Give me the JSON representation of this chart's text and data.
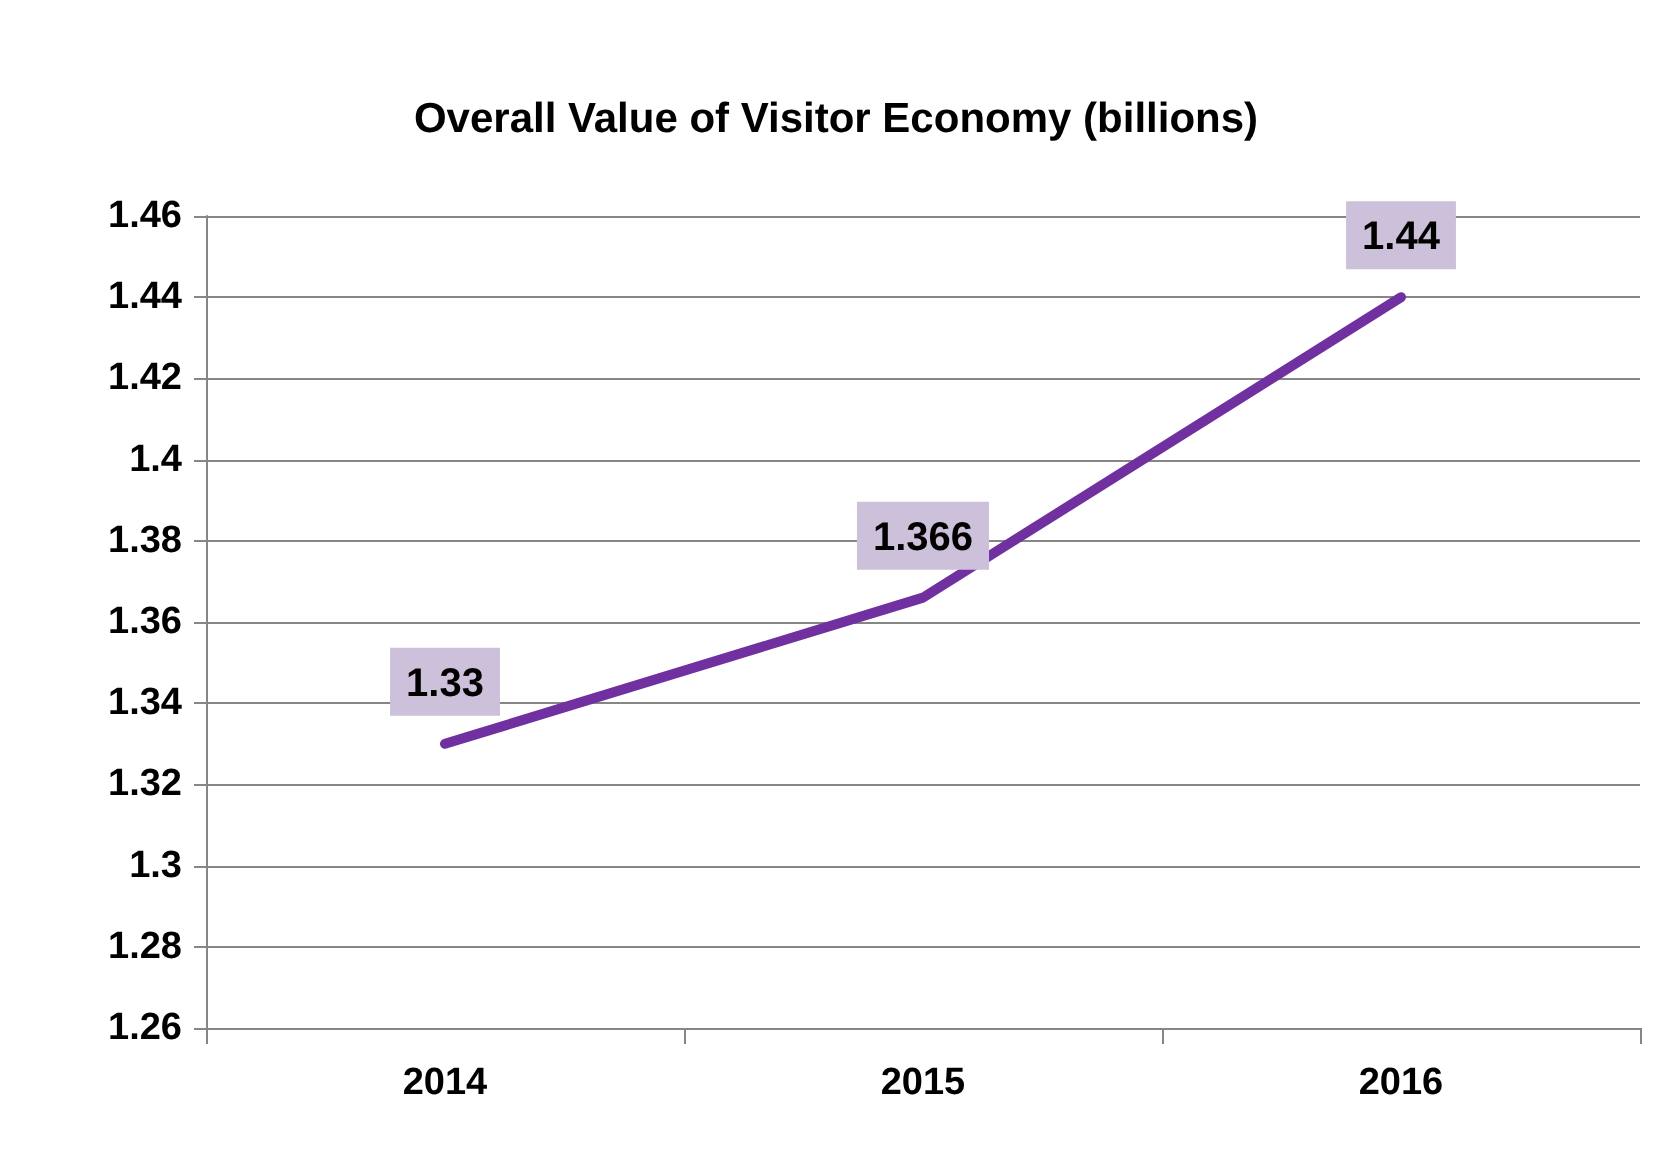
{
  "chart_data": {
    "type": "line",
    "title": "Overall Value of Visitor Economy (billions)",
    "categories": [
      "2014",
      "2015",
      "2016"
    ],
    "series": [
      {
        "color": "#7030a0",
        "values": [
          1.33,
          1.366,
          1.44
        ]
      }
    ],
    "ylim": [
      1.26,
      1.46
    ],
    "yticks": [
      1.26,
      1.28,
      1.3,
      1.32,
      1.34,
      1.36,
      1.38,
      1.4,
      1.42,
      1.44,
      1.46
    ],
    "grid": "y",
    "data_labels": true,
    "marker": "none",
    "line_style": "solid"
  }
}
